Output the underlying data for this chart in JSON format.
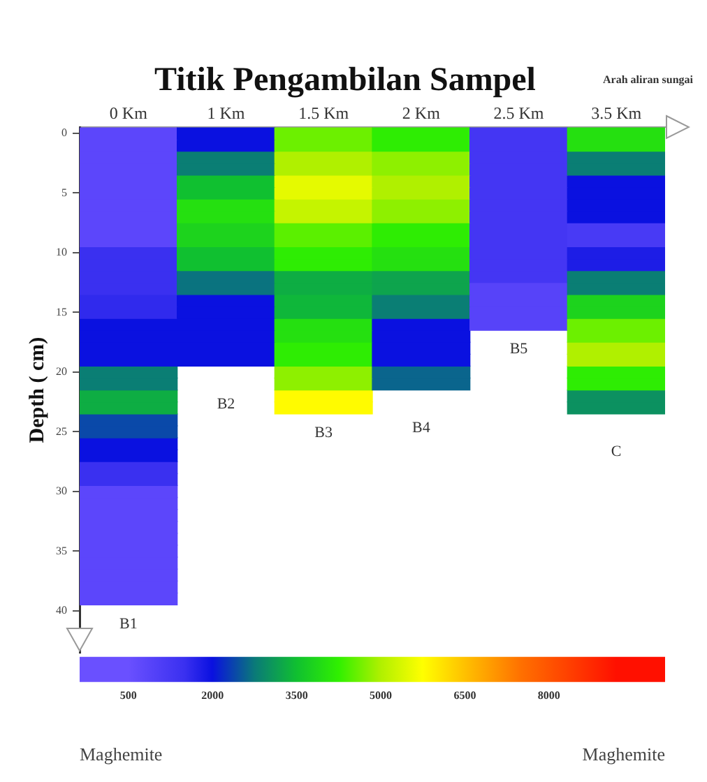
{
  "chart_data": {
    "type": "heatmap",
    "title": "Titik Pengambilan Sampel",
    "ylabel": "Depth ( cm)",
    "clabel": "Maghemite",
    "categories": [
      "0 Km",
      "1 Km",
      "1.5 Km",
      "2 Km",
      "2.5 Km",
      "3.5 Km"
    ],
    "y_categories": [
      "0",
      null,
      null,
      null,
      null,
      "5",
      null,
      null,
      null,
      null,
      "10",
      null,
      null,
      null,
      null,
      "15",
      null,
      null,
      null,
      null,
      "20",
      null,
      null,
      null,
      null,
      "25",
      null,
      null,
      null,
      null,
      "30",
      null,
      null,
      null,
      null,
      "35",
      null,
      null,
      null,
      null,
      "40"
    ],
    "clim": [
      500,
      9200
    ],
    "cticks": [
      500,
      2000,
      3500,
      5000,
      6500,
      8000
    ],
    "cells": [
      [
        800,
        2000,
        4600,
        4200,
        1300,
        4000
      ],
      [
        800,
        2000,
        4600,
        4200,
        1300,
        4000
      ],
      [
        800,
        2800,
        5000,
        4800,
        1300,
        2800
      ],
      [
        800,
        2800,
        5000,
        4800,
        1300,
        2800
      ],
      [
        800,
        3500,
        5500,
        5000,
        1300,
        2000
      ],
      [
        800,
        3500,
        5500,
        5000,
        1300,
        2000
      ],
      [
        800,
        4000,
        5200,
        4800,
        1300,
        2000
      ],
      [
        800,
        4000,
        5200,
        4800,
        1300,
        2000
      ],
      [
        800,
        3800,
        4500,
        4200,
        1300,
        1200
      ],
      [
        800,
        3800,
        4500,
        4200,
        1300,
        1200
      ],
      [
        1500,
        3500,
        4200,
        4000,
        1300,
        1800
      ],
      [
        1500,
        3500,
        4200,
        4000,
        1300,
        1800
      ],
      [
        1500,
        2700,
        3300,
        3200,
        1300,
        2800
      ],
      [
        1500,
        2700,
        3300,
        3200,
        900,
        2800
      ],
      [
        1600,
        2000,
        3400,
        2800,
        900,
        3800
      ],
      [
        1600,
        2000,
        3400,
        2800,
        900,
        3800
      ],
      [
        2000,
        2000,
        4000,
        2000,
        900,
        4600
      ],
      [
        2000,
        2000,
        4000,
        2000,
        null,
        4600
      ],
      [
        2000,
        2000,
        4200,
        2000,
        null,
        5000
      ],
      [
        2000,
        2000,
        4200,
        2000,
        null,
        5000
      ],
      [
        2800,
        null,
        4800,
        2600,
        null,
        4200
      ],
      [
        2800,
        null,
        4800,
        2600,
        null,
        4200
      ],
      [
        3300,
        null,
        5800,
        null,
        null,
        3000
      ],
      [
        3300,
        null,
        5800,
        null,
        null,
        3000
      ],
      [
        2400,
        null,
        null,
        null,
        null,
        null
      ],
      [
        2400,
        null,
        null,
        null,
        null,
        null
      ],
      [
        2000,
        null,
        null,
        null,
        null,
        null
      ],
      [
        2000,
        null,
        null,
        null,
        null,
        null
      ],
      [
        1500,
        null,
        null,
        null,
        null,
        null
      ],
      [
        1500,
        null,
        null,
        null,
        null,
        null
      ],
      [
        800,
        null,
        null,
        null,
        null,
        null
      ],
      [
        800,
        null,
        null,
        null,
        null,
        null
      ],
      [
        800,
        null,
        null,
        null,
        null,
        null
      ],
      [
        800,
        null,
        null,
        null,
        null,
        null
      ],
      [
        800,
        null,
        null,
        null,
        null,
        null
      ],
      [
        800,
        null,
        null,
        null,
        null,
        null
      ],
      [
        800,
        null,
        null,
        null,
        null,
        null
      ],
      [
        800,
        null,
        null,
        null,
        null,
        null
      ],
      [
        800,
        null,
        null,
        null,
        null,
        null
      ],
      [
        800,
        null,
        null,
        null,
        null,
        null
      ],
      [
        null,
        null,
        null,
        null,
        null,
        null
      ]
    ],
    "annotations": [
      "Arah aliran sungai",
      "Maghemite",
      "B1",
      "B2",
      "B3",
      "B4",
      "B5",
      "C"
    ],
    "grid": false,
    "legend": false
  }
}
